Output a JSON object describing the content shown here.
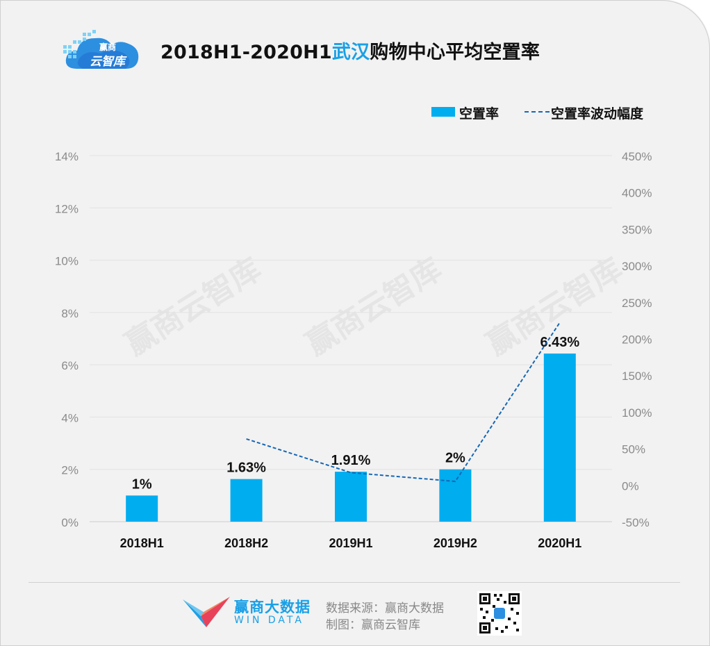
{
  "header": {
    "logo_line1": "赢商",
    "logo_line2": "云智库",
    "title_prefix": "2018H1-2020H1",
    "title_highlight": "武汉",
    "title_suffix": "购物中心平均空置率"
  },
  "colors": {
    "bar": "#00adef",
    "line": "#1567b5",
    "highlight": "#1aa0e6"
  },
  "watermark_text": "赢商云智库",
  "chart_data": {
    "type": "bar",
    "categories": [
      "2018H1",
      "2018H2",
      "2019H1",
      "2019H2",
      "2020H1"
    ],
    "series": [
      {
        "name": "空置率",
        "type": "bar",
        "axis": "left",
        "values": [
          1,
          1.63,
          1.91,
          2,
          6.43
        ],
        "labels": [
          "1%",
          "1.63%",
          "1.91%",
          "2%",
          "6.43%"
        ]
      },
      {
        "name": "空置率波动幅度",
        "type": "line",
        "axis": "right",
        "style": "dashed",
        "values": [
          null,
          63,
          17,
          5,
          222
        ]
      }
    ],
    "y_left": {
      "ylim": [
        0,
        14
      ],
      "ticks": [
        0,
        2,
        4,
        6,
        8,
        10,
        12,
        14
      ],
      "tick_labels": [
        "0%",
        "2%",
        "4%",
        "6%",
        "8%",
        "10%",
        "12%",
        "14%"
      ]
    },
    "y_right": {
      "ylim": [
        -50,
        450
      ],
      "ticks": [
        -50,
        0,
        50,
        100,
        150,
        200,
        250,
        300,
        350,
        400,
        450
      ],
      "tick_labels": [
        "-50%",
        "0%",
        "50%",
        "100%",
        "150%",
        "200%",
        "250%",
        "300%",
        "350%",
        "400%",
        "450%"
      ]
    },
    "grid": true,
    "legend_position": "top-right"
  },
  "legend": {
    "bar_label": "空置率",
    "line_label": "空置率波动幅度"
  },
  "footer": {
    "brand_name": "赢商大数据",
    "brand_sub": "WIN DATA",
    "source_line": "数据来源：赢商大数据",
    "made_by_line": "制图：赢商云智库"
  }
}
